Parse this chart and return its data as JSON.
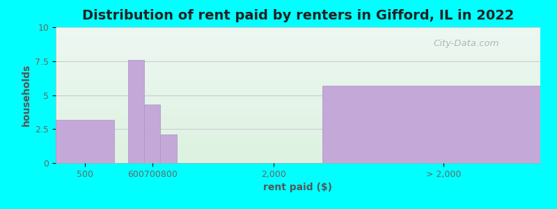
{
  "title": "Distribution of rent paid by renters in Gifford, IL in 2022",
  "xlabel": "rent paid ($)",
  "ylabel": "households",
  "background_color": "#00FFFF",
  "bar_color": "#c4a8d8",
  "bar_edgecolor": "#b090c4",
  "ylim": [
    0,
    10
  ],
  "yticks": [
    0,
    2.5,
    5,
    7.5,
    10
  ],
  "ytick_labels": [
    "0",
    "2.5",
    "5",
    "7.5",
    "10"
  ],
  "bars": [
    {
      "x_left": 0,
      "x_right": 1.2,
      "height": 3.2
    },
    {
      "x_left": 1.5,
      "x_right": 1.83,
      "height": 7.6
    },
    {
      "x_left": 1.83,
      "x_right": 2.16,
      "height": 4.3
    },
    {
      "x_left": 2.16,
      "x_right": 2.5,
      "height": 2.1
    },
    {
      "x_left": 5.5,
      "x_right": 10.0,
      "height": 5.7
    }
  ],
  "xtick_positions": [
    0.6,
    2.0,
    4.5,
    8.0
  ],
  "xtick_labels": [
    "500",
    "600700800",
    "2,000",
    "> 2,000"
  ],
  "xlim": [
    0,
    10.0
  ],
  "title_fontsize": 14,
  "axis_label_fontsize": 10,
  "tick_fontsize": 9,
  "watermark": "City-Data.com"
}
